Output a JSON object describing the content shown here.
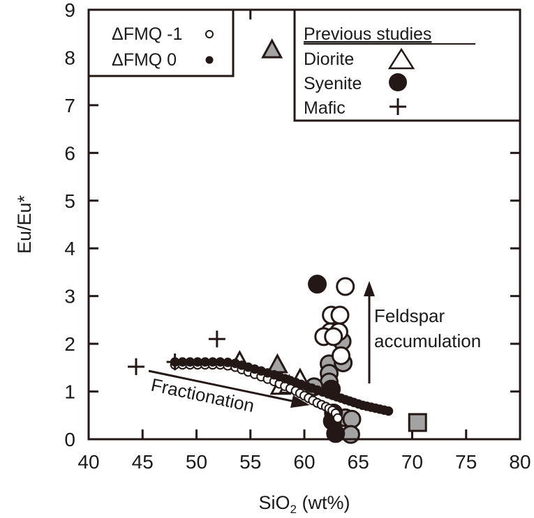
{
  "chart_data": {
    "type": "scatter",
    "title": "",
    "xlabel": "SiO2 (wt%)",
    "xlabel_main": "SiO",
    "xlabel_sub": "2",
    "xlabel_rest": " (wt%)",
    "ylabel": "Eu/Eu*",
    "xlim": [
      40,
      80
    ],
    "ylim": [
      0,
      9
    ],
    "x_ticks": [
      "40",
      "45",
      "50",
      "55",
      "60",
      "65",
      "70",
      "75",
      "80"
    ],
    "y_ticks": [
      "0",
      "1",
      "2",
      "3",
      "4",
      "5",
      "6",
      "7",
      "8",
      "9"
    ],
    "grid": false,
    "legend_model": {
      "entries": [
        {
          "label": "ΔFMQ -1",
          "marker": "open-circle-small"
        },
        {
          "label": "ΔFMQ 0",
          "marker": "filled-circle-small"
        }
      ],
      "position": "top-left"
    },
    "legend_previous": {
      "title": "Previous studies",
      "entries": [
        {
          "label": "Diorite",
          "marker": "open-triangle"
        },
        {
          "label": "Syenite",
          "marker": "filled-circle"
        },
        {
          "label": "Mafic",
          "marker": "plus"
        }
      ],
      "position": "top-right"
    },
    "annotations": [
      {
        "text": "Fractionation",
        "arrow_from": [
          45.5,
          1.45
        ],
        "arrow_to": [
          59.5,
          0.75
        ]
      },
      {
        "text": "Feldspar",
        "text2": "accumulation",
        "arrow_from": [
          66,
          1.2
        ],
        "arrow_to": [
          66,
          3.3
        ]
      }
    ],
    "series": [
      {
        "name": "ΔFMQ 0 model",
        "marker": "filled-circle-small",
        "color": "#231815",
        "x": [
          48.0,
          48.7,
          49.4,
          50.1,
          50.8,
          51.5,
          52.2,
          52.9,
          53.6,
          54.2,
          54.8,
          55.4,
          56.0,
          56.6,
          57.2,
          57.7,
          58.2,
          58.7,
          59.2,
          59.7,
          60.2,
          60.7,
          61.2,
          61.7,
          62.2,
          62.6,
          63.0,
          63.4,
          63.8,
          64.2,
          64.6,
          65.0,
          65.4,
          65.8,
          66.2,
          66.6,
          67.0,
          67.4,
          67.8
        ],
        "y": [
          1.62,
          1.62,
          1.62,
          1.62,
          1.62,
          1.62,
          1.62,
          1.61,
          1.59,
          1.55,
          1.51,
          1.47,
          1.43,
          1.39,
          1.35,
          1.31,
          1.27,
          1.23,
          1.19,
          1.15,
          1.11,
          1.07,
          1.03,
          0.99,
          0.95,
          0.92,
          0.89,
          0.86,
          0.83,
          0.8,
          0.77,
          0.74,
          0.71,
          0.69,
          0.67,
          0.65,
          0.63,
          0.61,
          0.59
        ]
      },
      {
        "name": "ΔFMQ -1 model",
        "marker": "open-circle-small",
        "color": "#ffffff",
        "x": [
          48.0,
          48.7,
          49.4,
          50.1,
          50.8,
          51.5,
          52.2,
          52.9,
          53.6,
          54.2,
          54.8,
          55.4,
          56.0,
          56.6,
          57.2,
          57.7,
          58.2,
          58.7,
          59.2,
          59.6,
          60.0,
          60.4,
          60.8,
          61.2,
          61.6,
          62.0,
          62.3,
          62.6,
          62.9,
          63.1
        ],
        "y": [
          1.62,
          1.62,
          1.62,
          1.62,
          1.62,
          1.62,
          1.62,
          1.6,
          1.57,
          1.52,
          1.47,
          1.42,
          1.37,
          1.32,
          1.27,
          1.22,
          1.17,
          1.12,
          1.07,
          1.02,
          0.97,
          0.92,
          0.87,
          0.82,
          0.78,
          0.74,
          0.7,
          0.66,
          0.6,
          0.5
        ]
      },
      {
        "name": "Samples ΔFMQ 0 (large)",
        "marker": "filled-circle-large",
        "color": "#231815",
        "x": [
          61.2,
          62.5,
          62.7,
          62.9,
          62.6
        ],
        "y": [
          3.25,
          1.05,
          0.55,
          0.12,
          0.38
        ]
      },
      {
        "name": "Samples ΔFMQ -1 (large)",
        "marker": "open-circle-large",
        "color": "#ffffff",
        "x": [
          63.8,
          62.5,
          63.3,
          62.4,
          63.2,
          61.8,
          62.7,
          63.4
        ],
        "y": [
          3.2,
          2.6,
          2.6,
          2.25,
          2.25,
          2.15,
          2.15,
          1.75
        ]
      },
      {
        "name": "Samples (grey)",
        "marker": "grey-circle-large",
        "color": "#a3a3a3",
        "x": [
          63.5,
          62.3,
          63.6,
          62.3,
          62.3,
          63.8,
          64.4,
          64.3,
          60.9
        ],
        "y": [
          2.05,
          1.58,
          1.6,
          1.38,
          1.2,
          0.45,
          0.42,
          0.1,
          1.1
        ]
      },
      {
        "name": "Diorite",
        "marker": "open-triangle",
        "color": "#ffffff",
        "x": [
          54.0,
          57.8,
          58.6,
          59.6
        ],
        "y": [
          1.62,
          1.1,
          1.12,
          1.25
        ]
      },
      {
        "name": "Diorite (grey)",
        "marker": "grey-triangle",
        "color": "#a3a3a3",
        "x": [
          57.0,
          57.5
        ],
        "y": [
          8.15,
          1.55
        ]
      },
      {
        "name": "Mafic",
        "marker": "plus",
        "color": "#231815",
        "x": [
          44.4,
          48.0,
          51.9
        ],
        "y": [
          1.52,
          1.62,
          2.1
        ]
      },
      {
        "name": "Grey square",
        "marker": "grey-square",
        "color": "#a3a3a3",
        "x": [
          70.5
        ],
        "y": [
          0.35
        ]
      }
    ]
  },
  "labels": {
    "x_axis_title": "SiO2 (wt%)",
    "y_axis_title": "Eu/Eu*",
    "legend_model_1": "ΔFMQ -1",
    "legend_model_2": "ΔFMQ 0",
    "legend_prev_title": "Previous studies",
    "legend_prev_1": "Diorite",
    "legend_prev_2": "Syenite",
    "legend_prev_3": "Mafic",
    "annot_fractionation": "Fractionation",
    "annot_feldspar_1": "Feldspar",
    "annot_feldspar_2": "accumulation"
  },
  "colors": {
    "ink": "#231815",
    "grey_fill": "#a3a3a3",
    "background": "#ffffff"
  }
}
